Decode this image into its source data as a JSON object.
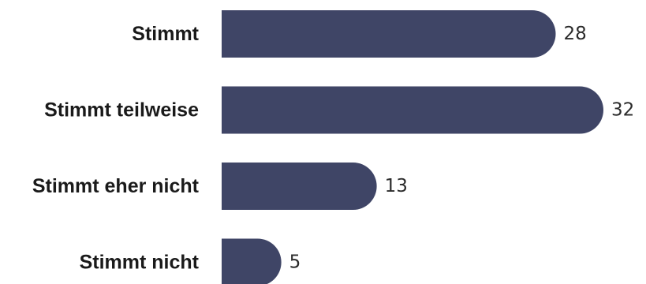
{
  "chart_data": {
    "type": "bar",
    "orientation": "horizontal",
    "categories": [
      "Stimmt",
      "Stimmt teilweise",
      "Stimmt eher nicht",
      "Stimmt nicht"
    ],
    "values": [
      28,
      32,
      13,
      5
    ],
    "xlim": [
      0,
      32
    ],
    "grid": false,
    "legend": "none",
    "bar_color": "#3f4566"
  }
}
